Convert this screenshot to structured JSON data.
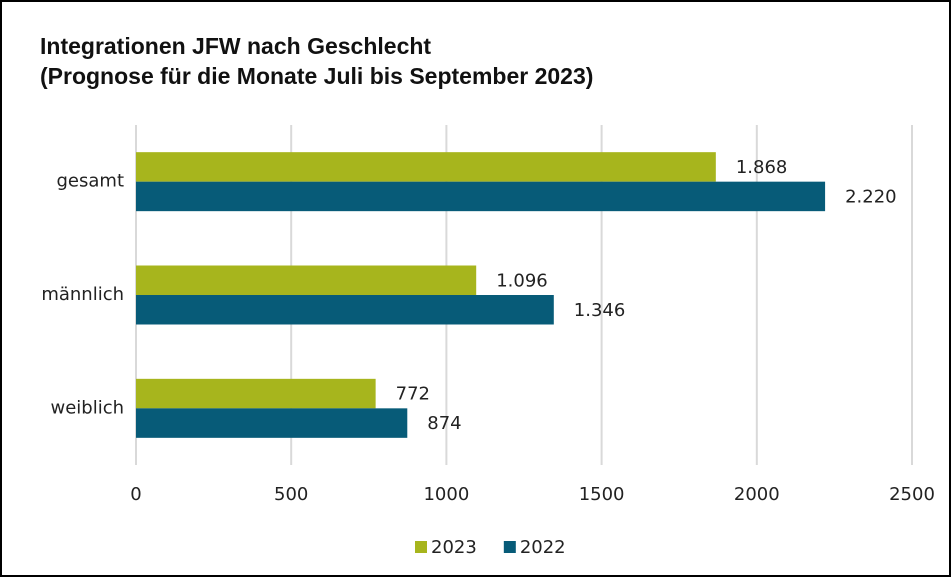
{
  "chart_data": {
    "type": "hbar",
    "title": [
      "Integrationen JFW nach Geschlecht",
      "(Prognose für die Monate Juli bis September 2023)"
    ],
    "categories": [
      "gesamt",
      "männlich",
      "weiblich"
    ],
    "series": [
      {
        "name": "2023",
        "color": "#a7b51d",
        "values": [
          1868,
          1096,
          772
        ],
        "value_labels": [
          "1.868",
          "1.096",
          "772"
        ]
      },
      {
        "name": "2022",
        "color": "#075b78",
        "values": [
          2220,
          1346,
          874
        ],
        "value_labels": [
          "2.220",
          "1.346",
          "874"
        ]
      }
    ],
    "xlim": [
      0,
      2500
    ],
    "xticks": [
      0,
      500,
      1000,
      1500,
      2000,
      2500
    ],
    "grid": true,
    "legend": "bottom"
  }
}
